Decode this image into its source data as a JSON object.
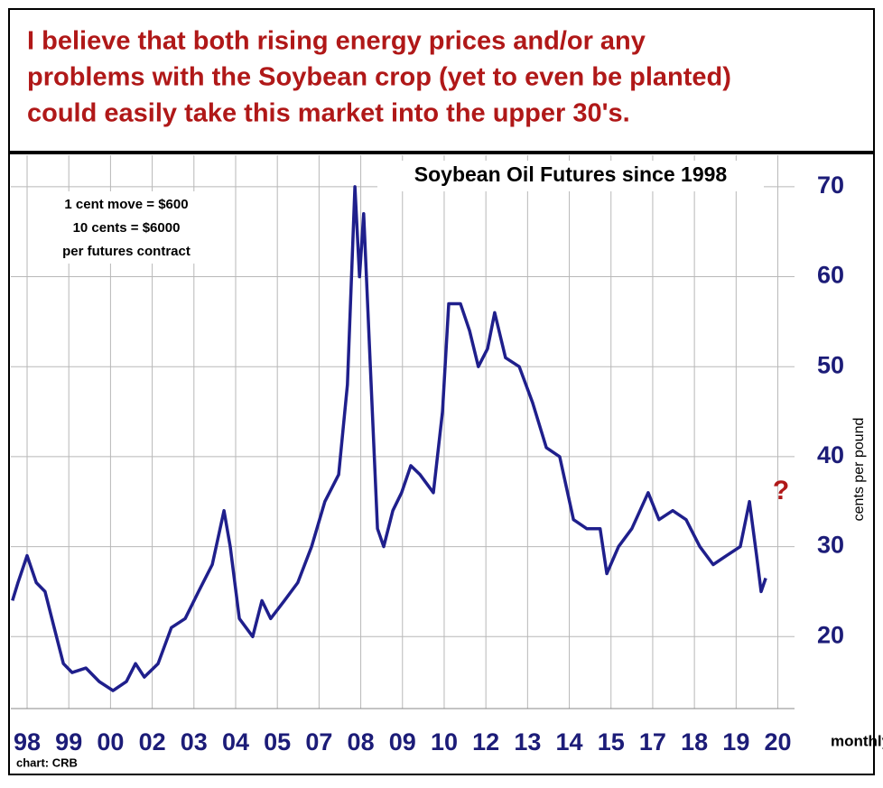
{
  "header": {
    "lines": [
      "I believe that both rising energy prices and/or any",
      "problems with the Soybean crop (yet to even be planted)",
      "could easily take this market into the upper 30's."
    ]
  },
  "chart_data": {
    "type": "line",
    "title": "Soybean Oil Futures since 1998",
    "notes": [
      "1 cent move = $600",
      "10 cents = $6000",
      "per futures contract"
    ],
    "annotation": "?",
    "y_label": "cents per pound",
    "x_label": "monthly",
    "source": "chart: CRB",
    "color": "#1f1f8c",
    "grid": true,
    "xlim": [
      -0.39,
      18.4
    ],
    "ylim": [
      12,
      73.5
    ],
    "yticks": [
      20,
      30,
      40,
      50,
      60,
      70
    ],
    "xticks": [
      {
        "value": 0,
        "label": "98"
      },
      {
        "value": 1,
        "label": "99"
      },
      {
        "value": 2,
        "label": "00"
      },
      {
        "value": 3,
        "label": "02"
      },
      {
        "value": 4,
        "label": "03"
      },
      {
        "value": 5,
        "label": "04"
      },
      {
        "value": 6,
        "label": "05"
      },
      {
        "value": 7,
        "label": "07"
      },
      {
        "value": 8,
        "label": "08"
      },
      {
        "value": 9,
        "label": "09"
      },
      {
        "value": 10,
        "label": "10"
      },
      {
        "value": 11,
        "label": "12"
      },
      {
        "value": 12,
        "label": "13"
      },
      {
        "value": 13,
        "label": "14"
      },
      {
        "value": 14,
        "label": "15"
      },
      {
        "value": 15,
        "label": "17"
      },
      {
        "value": 16,
        "label": "18"
      },
      {
        "value": 17,
        "label": "19"
      },
      {
        "value": 18,
        "label": "20"
      }
    ],
    "x": [
      -0.35,
      -0.22,
      0,
      0.22,
      0.43,
      0.65,
      0.87,
      1.08,
      1.41,
      1.73,
      2.06,
      2.38,
      2.6,
      2.81,
      3.14,
      3.46,
      3.79,
      4.11,
      4.44,
      4.72,
      4.87,
      5.09,
      5.41,
      5.63,
      5.84,
      6.17,
      6.49,
      6.82,
      7.14,
      7.47,
      7.68,
      7.86,
      7.97,
      8.07,
      8.23,
      8.4,
      8.55,
      8.77,
      8.98,
      9.2,
      9.42,
      9.74,
      9.96,
      10.11,
      10.39,
      10.61,
      10.82,
      11.04,
      11.21,
      11.47,
      11.8,
      12.12,
      12.45,
      12.77,
      13.1,
      13.42,
      13.74,
      13.9,
      14.18,
      14.5,
      14.89,
      15.15,
      15.48,
      15.8,
      16.13,
      16.45,
      16.77,
      17.1,
      17.32,
      17.49,
      17.6,
      17.71
    ],
    "values": [
      24,
      26,
      29,
      26,
      25,
      21,
      17,
      16,
      16.5,
      15,
      14,
      15,
      17,
      15.5,
      17,
      21,
      22,
      25,
      28,
      34,
      30,
      22,
      20,
      24,
      22,
      24,
      26,
      30,
      35,
      38,
      48,
      70,
      60,
      67,
      50,
      32,
      30,
      34,
      36,
      39,
      38,
      36,
      45,
      57,
      57,
      54,
      50,
      52,
      56,
      51,
      50,
      46,
      41,
      40,
      33,
      32,
      32,
      27,
      30,
      32,
      36,
      33,
      34,
      33,
      30,
      28,
      29,
      30,
      35,
      29,
      25,
      26.5
    ]
  }
}
